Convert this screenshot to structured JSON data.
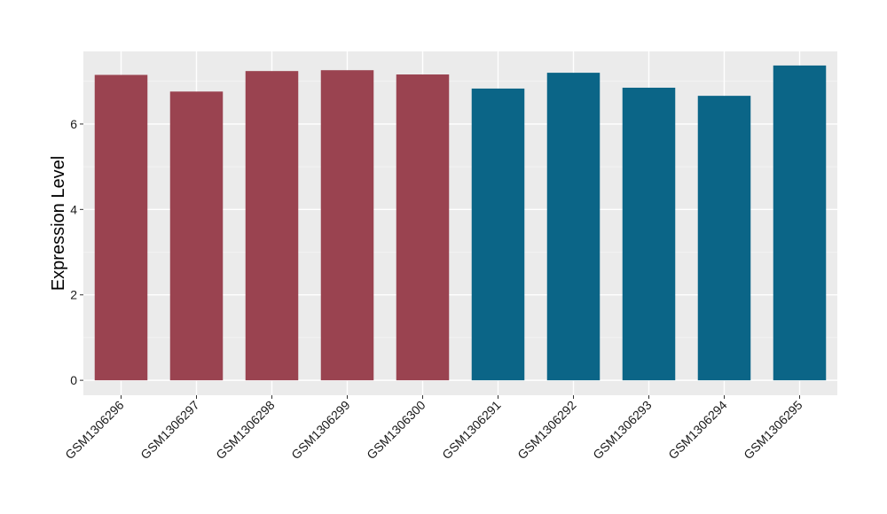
{
  "chart_data": {
    "type": "bar",
    "categories": [
      "GSM1306296",
      "GSM1306297",
      "GSM1306298",
      "GSM1306299",
      "GSM1306300",
      "GSM1306291",
      "GSM1306292",
      "GSM1306293",
      "GSM1306294",
      "GSM1306295"
    ],
    "values": [
      7.15,
      6.76,
      7.24,
      7.26,
      7.16,
      6.83,
      7.2,
      6.85,
      6.66,
      7.37
    ],
    "bar_colors": [
      "#9a4350",
      "#9a4350",
      "#9a4350",
      "#9a4350",
      "#9a4350",
      "#0b6587",
      "#0b6587",
      "#0b6587",
      "#0b6587",
      "#0b6587"
    ],
    "xlabel": "",
    "ylabel": "Expression Level",
    "yticks": [
      0,
      2,
      4,
      6
    ],
    "ylim": [
      -0.35,
      7.7
    ],
    "grid": true,
    "panel_background": "#ebebeb",
    "legend": "none"
  }
}
